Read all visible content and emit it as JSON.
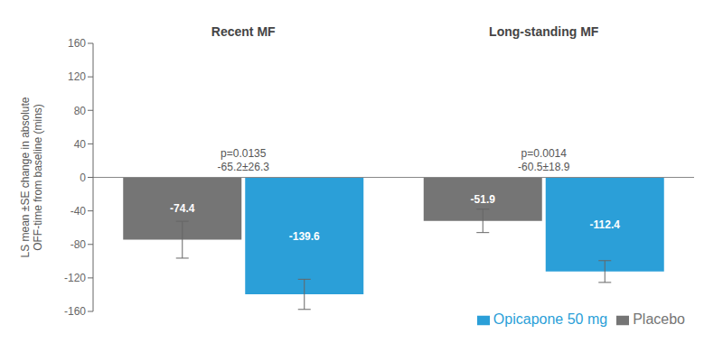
{
  "chart_data": {
    "type": "bar",
    "categories": [
      "Recent MF",
      "Long-standing MF"
    ],
    "series": [
      {
        "name": "Placebo",
        "color": "#757575",
        "values": [
          -74.4,
          -51.9
        ],
        "errors": [
          22,
          14
        ]
      },
      {
        "name": "Opicapone 50 mg",
        "color": "#2b9fd8",
        "values": [
          -139.6,
          -112.4
        ],
        "errors": [
          18,
          13
        ]
      }
    ],
    "ylabel": "LS mean ±SE change in absolute\nOFF-time from baseline (mins)",
    "ylim": [
      -160,
      160
    ],
    "yticks": [
      -160,
      -120,
      -80,
      -40,
      0,
      40,
      80,
      120,
      160
    ],
    "data_labels": true,
    "legend": "lower right",
    "annotations": [
      {
        "category": "Recent MF",
        "lines": [
          "p=0.0135",
          "-65.2±26.3"
        ]
      },
      {
        "category": "Long-standing MF",
        "lines": [
          "p=0.0014",
          "-60.5±18.9"
        ]
      }
    ]
  }
}
